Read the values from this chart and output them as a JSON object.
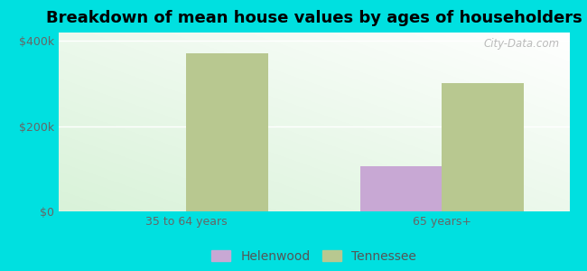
{
  "title": "Breakdown of mean house values by ages of householders",
  "categories": [
    "35 to 64 years",
    "65 years+"
  ],
  "helenwood_values": [
    0,
    107000
  ],
  "tennessee_values": [
    372000,
    302000
  ],
  "helenwood_color": "#c8a8d4",
  "tennessee_color": "#b8c890",
  "background_color": "#00e0e0",
  "ylim": [
    0,
    420000
  ],
  "yticks": [
    0,
    200000,
    400000
  ],
  "bar_width": 0.32,
  "legend_labels": [
    "Helenwood",
    "Tennessee"
  ],
  "title_fontsize": 13,
  "tick_fontsize": 9,
  "legend_fontsize": 10,
  "watermark": "City-Data.com"
}
